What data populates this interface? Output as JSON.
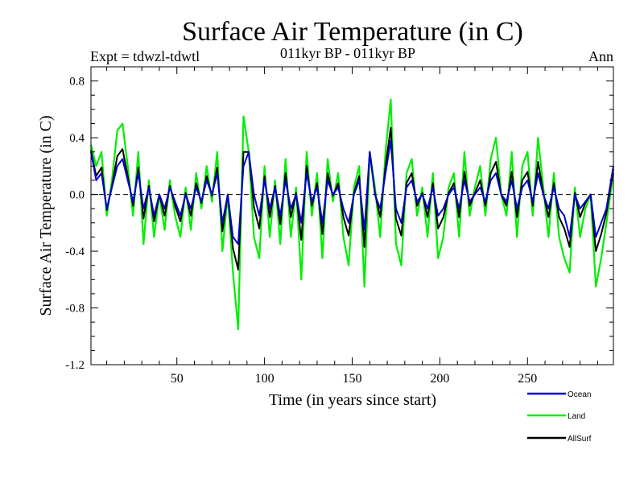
{
  "chart_data": {
    "type": "line",
    "title": "Surface Air Temperature (in C)",
    "subtitle": "011kyr BP - 011kyr BP",
    "left_label": "Expt = tdwzl-tdwtl",
    "right_label": "Ann",
    "xlabel": "Time (in years since start)",
    "ylabel": "Surface Air Temperature (in C)",
    "xlim": [
      1,
      299
    ],
    "ylim": [
      -1.2,
      0.9
    ],
    "x_ticks": [
      50,
      100,
      150,
      200,
      250
    ],
    "y_ticks": [
      -1.2,
      -0.8,
      -0.4,
      0.0,
      0.4,
      0.8
    ],
    "y_tick_labels": [
      "-1.2",
      "-0.8",
      "-0.4",
      "0.0",
      "0.4",
      "0.8"
    ],
    "zero_line": "dashed",
    "legend_position": "bottom-right",
    "series": [
      {
        "name": "Ocean",
        "color": "#0000cc",
        "x": [
          1,
          4,
          7,
          10,
          13,
          16,
          19,
          22,
          25,
          28,
          31,
          34,
          37,
          40,
          43,
          46,
          49,
          52,
          55,
          58,
          61,
          64,
          67,
          70,
          73,
          76,
          79,
          82,
          85,
          88,
          91,
          94,
          97,
          100,
          103,
          106,
          109,
          112,
          115,
          118,
          121,
          124,
          127,
          130,
          133,
          136,
          139,
          142,
          145,
          148,
          151,
          154,
          157,
          160,
          163,
          166,
          169,
          172,
          175,
          178,
          181,
          184,
          187,
          190,
          193,
          196,
          199,
          202,
          205,
          208,
          211,
          214,
          217,
          220,
          223,
          226,
          229,
          232,
          235,
          238,
          241,
          244,
          247,
          250,
          253,
          256,
          259,
          262,
          265,
          268,
          271,
          274,
          277,
          280,
          283,
          286,
          289,
          292,
          295,
          299
        ],
        "values": [
          0.3,
          0.1,
          0.15,
          -0.1,
          0.05,
          0.2,
          0.25,
          0.1,
          -0.05,
          0.15,
          -0.1,
          0.05,
          -0.15,
          0.0,
          -0.1,
          0.05,
          -0.05,
          -0.15,
          0.0,
          -0.1,
          0.05,
          -0.05,
          0.1,
          0.0,
          0.15,
          -0.2,
          0.0,
          -0.3,
          -0.35,
          0.2,
          0.3,
          0.0,
          -0.15,
          0.1,
          -0.1,
          0.05,
          -0.15,
          0.1,
          -0.1,
          0.0,
          -0.2,
          0.15,
          -0.05,
          0.05,
          -0.2,
          0.1,
          0.0,
          0.05,
          -0.1,
          -0.2,
          0.0,
          0.1,
          -0.25,
          0.3,
          0.0,
          -0.1,
          0.15,
          0.38,
          -0.1,
          -0.2,
          0.05,
          0.1,
          -0.05,
          0.0,
          -0.1,
          0.05,
          -0.15,
          -0.1,
          0.0,
          0.05,
          -0.1,
          0.1,
          -0.05,
          0.0,
          0.05,
          -0.05,
          0.1,
          0.15,
          0.0,
          -0.05,
          0.1,
          -0.1,
          0.05,
          0.1,
          -0.05,
          0.15,
          0.0,
          -0.1,
          0.05,
          -0.1,
          -0.15,
          -0.3,
          0.0,
          -0.1,
          -0.05,
          0.0,
          -0.3,
          -0.2,
          -0.1,
          0.2
        ]
      },
      {
        "name": "Land",
        "color": "#00ee00",
        "x": [
          1,
          4,
          7,
          10,
          13,
          16,
          19,
          22,
          25,
          28,
          31,
          34,
          37,
          40,
          43,
          46,
          49,
          52,
          55,
          58,
          61,
          64,
          67,
          70,
          73,
          76,
          79,
          82,
          85,
          88,
          91,
          94,
          97,
          100,
          103,
          106,
          109,
          112,
          115,
          118,
          121,
          124,
          127,
          130,
          133,
          136,
          139,
          142,
          145,
          148,
          151,
          154,
          157,
          160,
          163,
          166,
          169,
          172,
          175,
          178,
          181,
          184,
          187,
          190,
          193,
          196,
          199,
          202,
          205,
          208,
          211,
          214,
          217,
          220,
          223,
          226,
          229,
          232,
          235,
          238,
          241,
          244,
          247,
          250,
          253,
          256,
          259,
          262,
          265,
          268,
          271,
          274,
          277,
          280,
          283,
          286,
          289,
          292,
          295,
          299
        ],
        "values": [
          0.35,
          0.2,
          0.3,
          -0.15,
          0.1,
          0.45,
          0.5,
          0.2,
          -0.15,
          0.3,
          -0.35,
          0.1,
          -0.3,
          0.0,
          -0.25,
          0.1,
          -0.15,
          -0.3,
          0.05,
          -0.25,
          0.15,
          -0.1,
          0.2,
          -0.05,
          0.3,
          -0.4,
          0.0,
          -0.55,
          -0.95,
          0.55,
          0.3,
          -0.3,
          -0.45,
          0.2,
          -0.3,
          0.1,
          -0.35,
          0.25,
          -0.3,
          0.05,
          -0.6,
          0.3,
          -0.15,
          0.15,
          -0.45,
          0.25,
          -0.05,
          0.15,
          -0.3,
          -0.5,
          0.05,
          0.2,
          -0.65,
          0.3,
          0.05,
          -0.3,
          0.3,
          0.67,
          -0.35,
          -0.5,
          0.15,
          0.25,
          -0.15,
          0.05,
          -0.3,
          0.15,
          -0.45,
          -0.3,
          0.05,
          0.15,
          -0.3,
          0.3,
          -0.15,
          0.05,
          0.2,
          -0.15,
          0.25,
          0.4,
          0.0,
          -0.15,
          0.3,
          -0.3,
          0.2,
          0.3,
          -0.15,
          0.4,
          0.05,
          -0.3,
          0.15,
          -0.3,
          -0.45,
          -0.55,
          0.05,
          -0.3,
          -0.1,
          0.0,
          -0.65,
          -0.45,
          -0.2,
          0.15
        ]
      },
      {
        "name": "AllSurf",
        "color": "#000000",
        "x": [
          1,
          4,
          7,
          10,
          13,
          16,
          19,
          22,
          25,
          28,
          31,
          34,
          37,
          40,
          43,
          46,
          49,
          52,
          55,
          58,
          61,
          64,
          67,
          70,
          73,
          76,
          79,
          82,
          85,
          88,
          91,
          94,
          97,
          100,
          103,
          106,
          109,
          112,
          115,
          118,
          121,
          124,
          127,
          130,
          133,
          136,
          139,
          142,
          145,
          148,
          151,
          154,
          157,
          160,
          163,
          166,
          169,
          172,
          175,
          178,
          181,
          184,
          187,
          190,
          193,
          196,
          199,
          202,
          205,
          208,
          211,
          214,
          217,
          220,
          223,
          226,
          229,
          232,
          235,
          238,
          241,
          244,
          247,
          250,
          253,
          256,
          259,
          262,
          265,
          268,
          271,
          274,
          277,
          280,
          283,
          286,
          289,
          292,
          295,
          299
        ],
        "values": [
          0.31,
          0.13,
          0.19,
          -0.11,
          0.06,
          0.27,
          0.32,
          0.13,
          -0.08,
          0.19,
          -0.17,
          0.06,
          -0.19,
          0.0,
          -0.15,
          0.06,
          -0.08,
          -0.19,
          0.01,
          -0.15,
          0.08,
          -0.06,
          0.13,
          -0.01,
          0.19,
          -0.26,
          0.0,
          -0.38,
          -0.53,
          0.3,
          0.3,
          -0.09,
          -0.24,
          0.13,
          -0.16,
          0.06,
          -0.21,
          0.15,
          -0.16,
          0.01,
          -0.32,
          0.2,
          -0.08,
          0.08,
          -0.28,
          0.15,
          -0.01,
          0.08,
          -0.16,
          -0.29,
          0.01,
          0.13,
          -0.37,
          0.3,
          0.01,
          -0.16,
          0.2,
          0.47,
          -0.17,
          -0.29,
          0.08,
          0.15,
          -0.08,
          0.01,
          -0.16,
          0.08,
          -0.24,
          -0.16,
          0.01,
          0.08,
          -0.16,
          0.16,
          -0.08,
          0.01,
          0.1,
          -0.08,
          0.15,
          0.23,
          0.0,
          -0.08,
          0.16,
          -0.16,
          0.1,
          0.16,
          -0.08,
          0.23,
          0.01,
          -0.16,
          0.08,
          -0.16,
          -0.24,
          -0.37,
          0.01,
          -0.16,
          -0.06,
          0.0,
          -0.4,
          -0.28,
          -0.13,
          0.18
        ]
      }
    ]
  }
}
